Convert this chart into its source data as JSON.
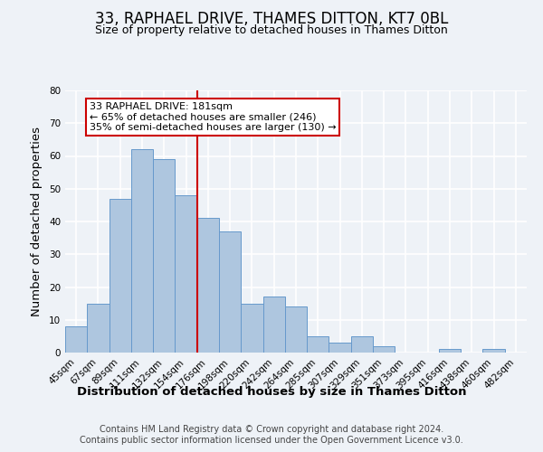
{
  "title": "33, RAPHAEL DRIVE, THAMES DITTON, KT7 0BL",
  "subtitle": "Size of property relative to detached houses in Thames Ditton",
  "xlabel": "Distribution of detached houses by size in Thames Ditton",
  "ylabel": "Number of detached properties",
  "footer_line1": "Contains HM Land Registry data © Crown copyright and database right 2024.",
  "footer_line2": "Contains public sector information licensed under the Open Government Licence v3.0.",
  "bin_labels": [
    "45sqm",
    "67sqm",
    "89sqm",
    "111sqm",
    "132sqm",
    "154sqm",
    "176sqm",
    "198sqm",
    "220sqm",
    "242sqm",
    "264sqm",
    "285sqm",
    "307sqm",
    "329sqm",
    "351sqm",
    "373sqm",
    "395sqm",
    "416sqm",
    "438sqm",
    "460sqm",
    "482sqm"
  ],
  "bar_heights": [
    8,
    15,
    47,
    62,
    59,
    48,
    41,
    37,
    15,
    17,
    14,
    5,
    3,
    5,
    2,
    0,
    0,
    1,
    0,
    1,
    0
  ],
  "bar_color": "#aec6df",
  "bar_edge_color": "#6699cc",
  "vline_color": "#cc0000",
  "vline_x_bin": 6,
  "property_line_label": "33 RAPHAEL DRIVE: 181sqm",
  "annotation_line1": "← 65% of detached houses are smaller (246)",
  "annotation_line2": "35% of semi-detached houses are larger (130) →",
  "annotation_box_color": "#ffffff",
  "annotation_box_edge": "#cc0000",
  "ylim": [
    0,
    80
  ],
  "yticks": [
    0,
    10,
    20,
    30,
    40,
    50,
    60,
    70,
    80
  ],
  "background_color": "#eef2f7",
  "grid_color": "#ffffff",
  "title_fontsize": 12,
  "subtitle_fontsize": 9,
  "axis_label_fontsize": 9.5,
  "tick_fontsize": 7.5,
  "annotation_fontsize": 8,
  "footer_fontsize": 7
}
